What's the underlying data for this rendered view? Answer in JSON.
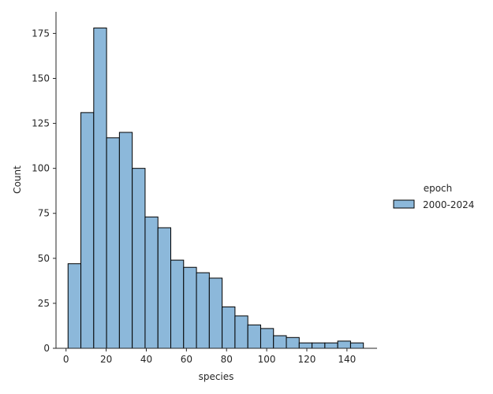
{
  "chart_data": {
    "type": "bar",
    "subtype": "histogram",
    "xlabel": "species",
    "ylabel": "Count",
    "xlim": [
      -5,
      155
    ],
    "ylim": [
      0,
      187
    ],
    "xticks": [
      0,
      20,
      40,
      60,
      80,
      100,
      120,
      140
    ],
    "yticks": [
      0,
      25,
      50,
      75,
      100,
      125,
      150,
      175
    ],
    "bin_edges": [
      1,
      7.4,
      13.8,
      20.2,
      26.6,
      33,
      39.4,
      45.8,
      52.2,
      58.6,
      65,
      71.4,
      77.8,
      84.2,
      90.6,
      97,
      103.4,
      109.8,
      116.2,
      122.6,
      129,
      135.4,
      141.8,
      148.2
    ],
    "counts": [
      47,
      131,
      178,
      117,
      120,
      100,
      73,
      67,
      49,
      45,
      42,
      39,
      23,
      18,
      13,
      11,
      7,
      6,
      3,
      3,
      3,
      4,
      3
    ],
    "bar_color": "#8cb8da",
    "edge_color": "#000000",
    "grid": false,
    "legend": {
      "title": "epoch",
      "placement": "right",
      "entries": [
        {
          "label": "2000-2024",
          "color": "#8cb8da"
        }
      ]
    }
  }
}
